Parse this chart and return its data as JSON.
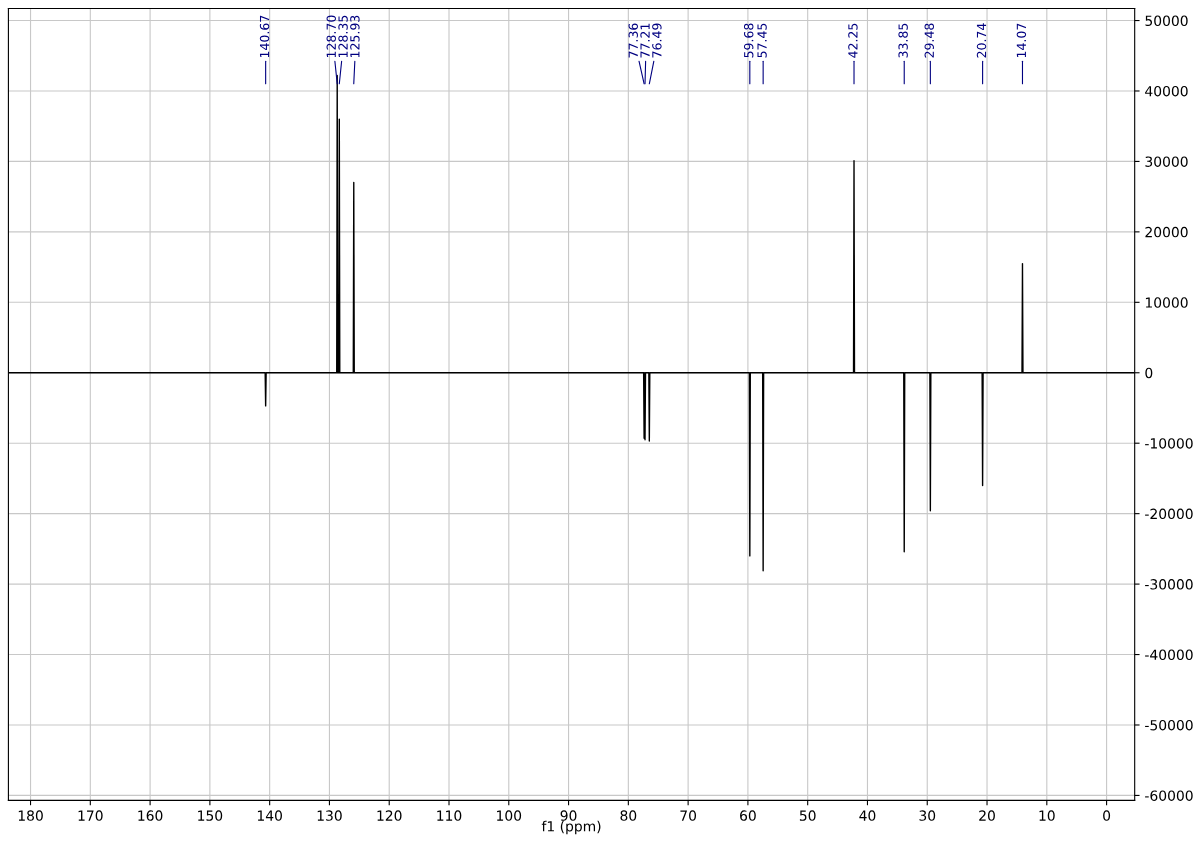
{
  "chart_data": {
    "type": "line",
    "xlabel": "f1 (ppm)",
    "x": [
      183.7,
      140.75,
      140.67,
      140.59,
      128.78,
      128.7,
      128.62,
      128.43,
      128.35,
      128.27,
      126.01,
      125.93,
      125.85,
      77.44,
      77.36,
      77.29,
      77.21,
      77.13,
      76.57,
      76.49,
      76.41,
      59.76,
      59.68,
      59.6,
      57.53,
      57.45,
      57.37,
      42.33,
      42.25,
      42.17,
      33.93,
      33.85,
      33.77,
      29.56,
      29.48,
      29.4,
      20.82,
      20.74,
      20.66,
      14.15,
      14.07,
      13.99,
      -4.7
    ],
    "series": [
      {
        "color": "#000000",
        "values": [
          0,
          0,
          -4700,
          0,
          0,
          42200,
          0,
          0,
          36000,
          0,
          0,
          27000,
          0,
          0,
          -9300,
          0,
          -9500,
          0,
          0,
          -9700,
          0,
          0,
          -26000,
          0,
          0,
          -28100,
          0,
          0,
          30100,
          0,
          0,
          -25400,
          0,
          0,
          -19600,
          0,
          0,
          -16000,
          0,
          0,
          15500,
          0,
          0
        ]
      }
    ],
    "annotations": [
      {
        "text": "140.67",
        "x": 140.67
      },
      {
        "text": "128.70",
        "x": 128.7
      },
      {
        "text": "128.35",
        "x": 128.35
      },
      {
        "text": "125.93",
        "x": 125.93
      },
      {
        "text": "77.36",
        "x": 77.36
      },
      {
        "text": "77.21",
        "x": 77.21
      },
      {
        "text": "76.49",
        "x": 76.49
      },
      {
        "text": "59.68",
        "x": 59.68
      },
      {
        "text": "57.45",
        "x": 57.45
      },
      {
        "text": "42.25",
        "x": 42.25
      },
      {
        "text": "33.85",
        "x": 33.85
      },
      {
        "text": "29.48",
        "x": 29.48
      },
      {
        "text": "20.74",
        "x": 20.74
      },
      {
        "text": "14.07",
        "x": 14.07
      }
    ],
    "xlim": [
      183.7,
      -4.7
    ],
    "xticks": [
      180,
      170,
      160,
      150,
      140,
      130,
      120,
      110,
      100,
      90,
      80,
      70,
      60,
      50,
      40,
      30,
      20,
      10,
      0
    ],
    "ylim": [
      -60700,
      51700
    ],
    "yticks": [
      -60000,
      -50000,
      -40000,
      -30000,
      -20000,
      -10000,
      0,
      10000,
      20000,
      30000,
      40000,
      50000
    ],
    "grid": true,
    "line_style": "solid"
  }
}
